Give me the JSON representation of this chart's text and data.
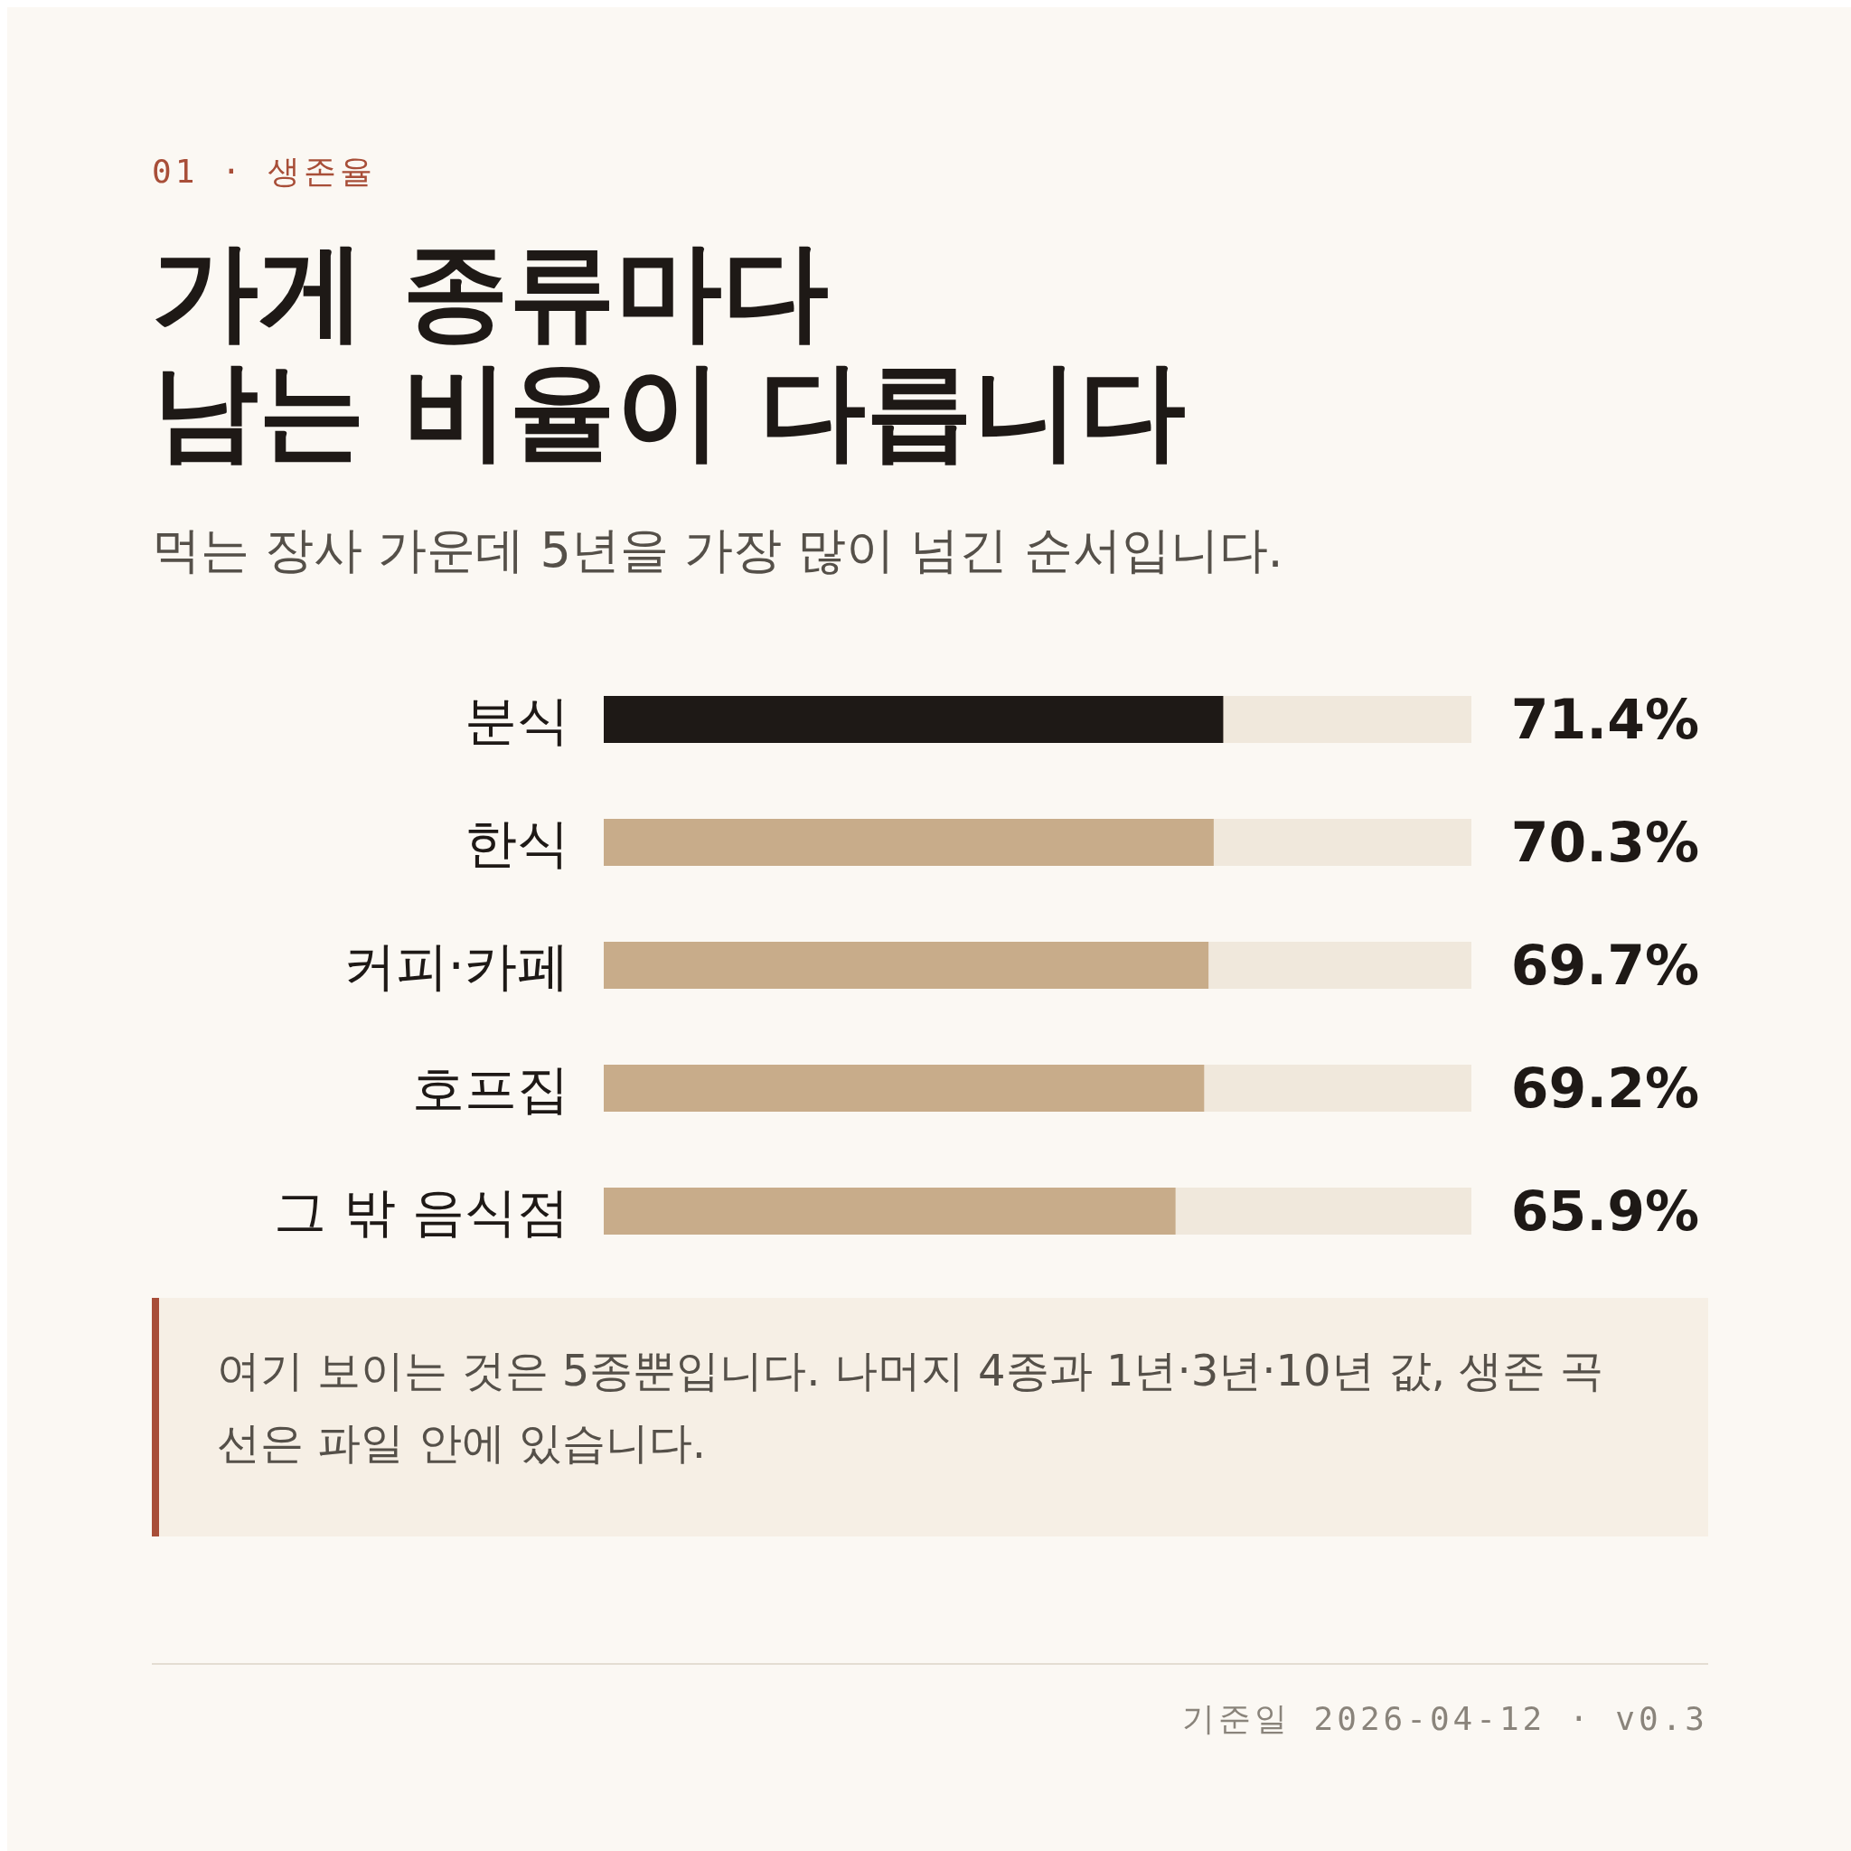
{
  "chart_data": {
    "type": "bar",
    "orientation": "horizontal",
    "title": "가게 종류마다\n남는 비율이 다릅니다",
    "subtitle": "먹는 장사 가운데 5년을 가장 많이 넘긴 순서입니다.",
    "categories": [
      "분식",
      "한식",
      "커피·카페",
      "호프집",
      "그 밖 음식점"
    ],
    "values": [
      71.4,
      70.3,
      69.7,
      69.2,
      65.9
    ],
    "colors": [
      "#1e1916",
      "#c8ac8a",
      "#c8ac8a",
      "#c8ac8a",
      "#c8ac8a"
    ],
    "value_labels": [
      "71.4%",
      "70.3%",
      "69.7%",
      "69.2%",
      "65.9%"
    ],
    "xlim": [
      0,
      100
    ],
    "tick_labels": "y",
    "annotations": [
      "01 · 생존율",
      "여기 보이는 것은 5종뿐입니다. 나머지 4종과 1년·3년·10년 값, 생존 곡선은 파일 안에 있습니다.",
      "기준일 2026-04-12 · v0.3"
    ]
  }
}
